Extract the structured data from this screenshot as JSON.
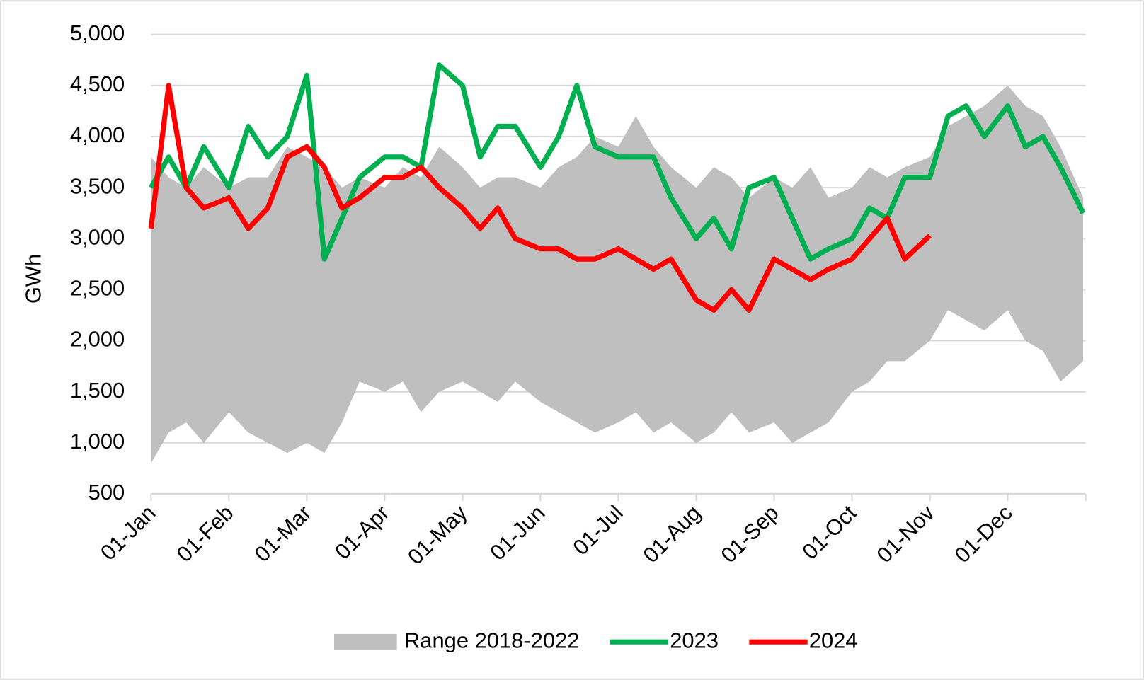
{
  "chart_data": {
    "type": "line",
    "ylabel": "GWh",
    "x": [
      "01-Jan",
      "08-Jan",
      "15-Jan",
      "22-Jan",
      "01-Feb",
      "08-Feb",
      "15-Feb",
      "22-Feb",
      "01-Mar",
      "08-Mar",
      "15-Mar",
      "22-Mar",
      "01-Apr",
      "08-Apr",
      "15-Apr",
      "22-Apr",
      "01-May",
      "08-May",
      "15-May",
      "22-May",
      "01-Jun",
      "08-Jun",
      "15-Jun",
      "22-Jun",
      "01-Jul",
      "08-Jul",
      "15-Jul",
      "22-Jul",
      "01-Aug",
      "08-Aug",
      "15-Aug",
      "22-Aug",
      "01-Sep",
      "08-Sep",
      "15-Sep",
      "22-Sep",
      "01-Oct",
      "08-Oct",
      "15-Oct",
      "22-Oct",
      "01-Nov",
      "08-Nov",
      "15-Nov",
      "22-Nov",
      "01-Dec",
      "08-Dec",
      "15-Dec",
      "22-Dec",
      "31-Dec"
    ],
    "xlim": [
      "01-Jan",
      "31-Dec"
    ],
    "xticks": [
      "01-Jan",
      "01-Feb",
      "01-Mar",
      "01-Apr",
      "01-May",
      "01-Jun",
      "01-Jul",
      "01-Aug",
      "01-Sep",
      "01-Oct",
      "01-Nov",
      "01-Dec"
    ],
    "ylim": [
      500,
      5000
    ],
    "yticks": [
      500,
      {
        "value": 1000,
        "label": "1,000"
      },
      {
        "value": 1500,
        "label": "1,500"
      },
      {
        "value": 2000,
        "label": "2,000"
      },
      {
        "value": 2500,
        "label": "2,500"
      },
      {
        "value": 3000,
        "label": "3,000"
      },
      {
        "value": 3500,
        "label": "3,500"
      },
      {
        "value": 4000,
        "label": "4,000"
      },
      {
        "value": 4500,
        "label": "4,500"
      },
      {
        "value": 5000,
        "label": "5,000"
      }
    ],
    "grid": true,
    "legend": "bottom",
    "series": [
      {
        "name": "Range 2018-2022",
        "color": "#bfbfbf",
        "high": [
          3800,
          3600,
          3500,
          3700,
          3500,
          3600,
          3600,
          3900,
          3800,
          3700,
          3500,
          3600,
          3500,
          3700,
          3600,
          3900,
          3700,
          3500,
          3600,
          3600,
          3500,
          3700,
          3800,
          4000,
          3900,
          4200,
          3900,
          3700,
          3500,
          3700,
          3600,
          3400,
          3600,
          3500,
          3700,
          3400,
          3500,
          3700,
          3600,
          3700,
          3800,
          4100,
          4200,
          4300,
          4500,
          4300,
          4200,
          3900,
          3400
        ],
        "low": [
          800,
          1100,
          1200,
          1000,
          1300,
          1100,
          1000,
          900,
          1000,
          900,
          1200,
          1600,
          1500,
          1600,
          1300,
          1500,
          1600,
          1500,
          1400,
          1600,
          1400,
          1300,
          1200,
          1100,
          1200,
          1300,
          1100,
          1200,
          1000,
          1100,
          1300,
          1100,
          1200,
          1000,
          1100,
          1200,
          1500,
          1600,
          1800,
          1800,
          2000,
          2300,
          2200,
          2100,
          2300,
          2000,
          1900,
          1600,
          1800
        ]
      },
      {
        "name": "2023",
        "color": "#00b050",
        "values": [
          3500,
          3800,
          3500,
          3900,
          3500,
          4100,
          3800,
          4000,
          4600,
          2800,
          3200,
          3600,
          3800,
          3800,
          3700,
          4700,
          4500,
          3800,
          4100,
          4100,
          3700,
          4000,
          4500,
          3900,
          3800,
          3800,
          3800,
          3400,
          3000,
          3200,
          2900,
          3500,
          3600,
          3200,
          2800,
          2900,
          3000,
          3300,
          3200,
          3600,
          3600,
          4200,
          4300,
          4000,
          4300,
          3900,
          4000,
          3700,
          3250
        ]
      },
      {
        "name": "2024",
        "color": "#ff0000",
        "values": [
          3100,
          4500,
          3500,
          3300,
          3400,
          3100,
          3300,
          3800,
          3900,
          3700,
          3300,
          3400,
          3600,
          3600,
          3700,
          3500,
          3300,
          3100,
          3300,
          3000,
          2900,
          2900,
          2800,
          2800,
          2900,
          2800,
          2700,
          2800,
          2400,
          2300,
          2500,
          2300,
          2800,
          2700,
          2600,
          2700,
          2800,
          3000,
          3200,
          2800,
          3030,
          null,
          null,
          null,
          null,
          null,
          null,
          null,
          null
        ]
      }
    ]
  }
}
